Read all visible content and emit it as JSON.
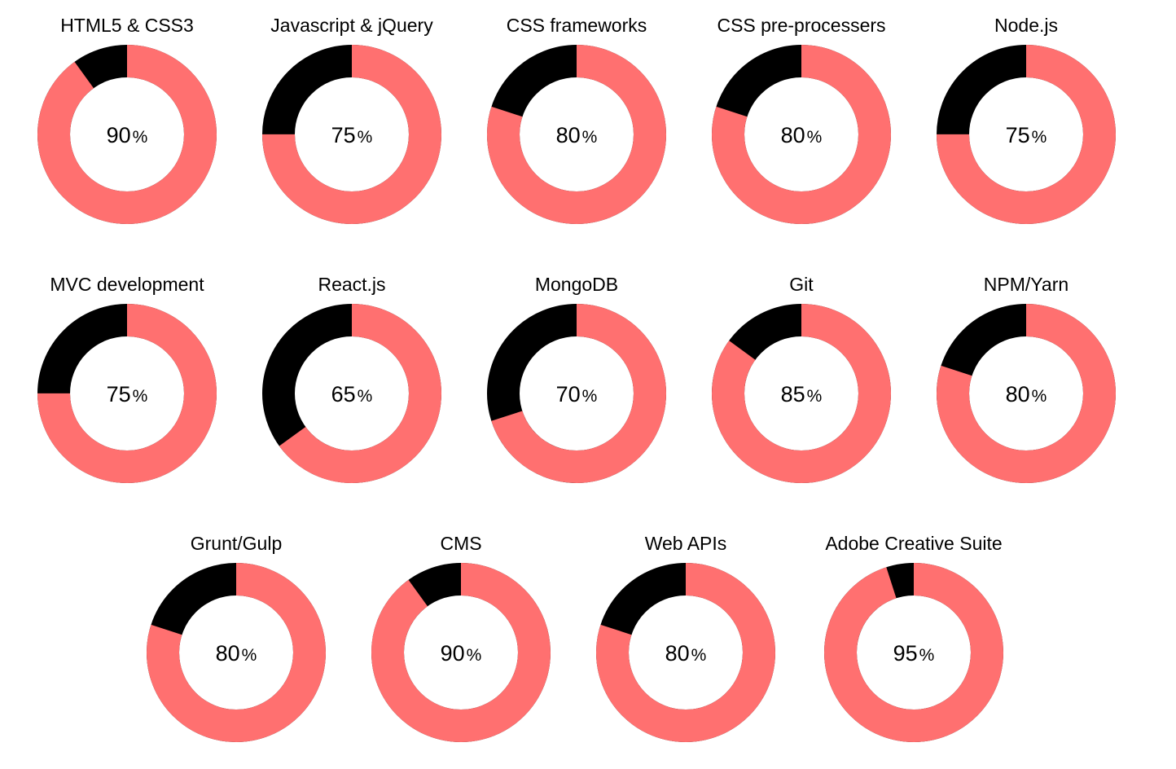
{
  "colors": {
    "filled": "#ff7070",
    "remaining": "#000000"
  },
  "percent_sign": "%",
  "chart_data": {
    "type": "pie",
    "variant": "donut",
    "series": [
      {
        "label": "HTML5 & CSS3",
        "value": 90
      },
      {
        "label": "Javascript & jQuery",
        "value": 75
      },
      {
        "label": "CSS frameworks",
        "value": 80
      },
      {
        "label": "CSS pre-processers",
        "value": 80
      },
      {
        "label": "Node.js",
        "value": 75
      },
      {
        "label": "MVC development",
        "value": 75
      },
      {
        "label": "React.js",
        "value": 65
      },
      {
        "label": "MongoDB",
        "value": 70
      },
      {
        "label": "Git",
        "value": 85
      },
      {
        "label": "NPM/Yarn",
        "value": 80
      },
      {
        "label": "Grunt/Gulp",
        "value": 80
      },
      {
        "label": "CMS",
        "value": 90
      },
      {
        "label": "Web APIs",
        "value": 80
      },
      {
        "label": "Adobe Creative Suite",
        "value": 95
      }
    ],
    "max": 100
  }
}
